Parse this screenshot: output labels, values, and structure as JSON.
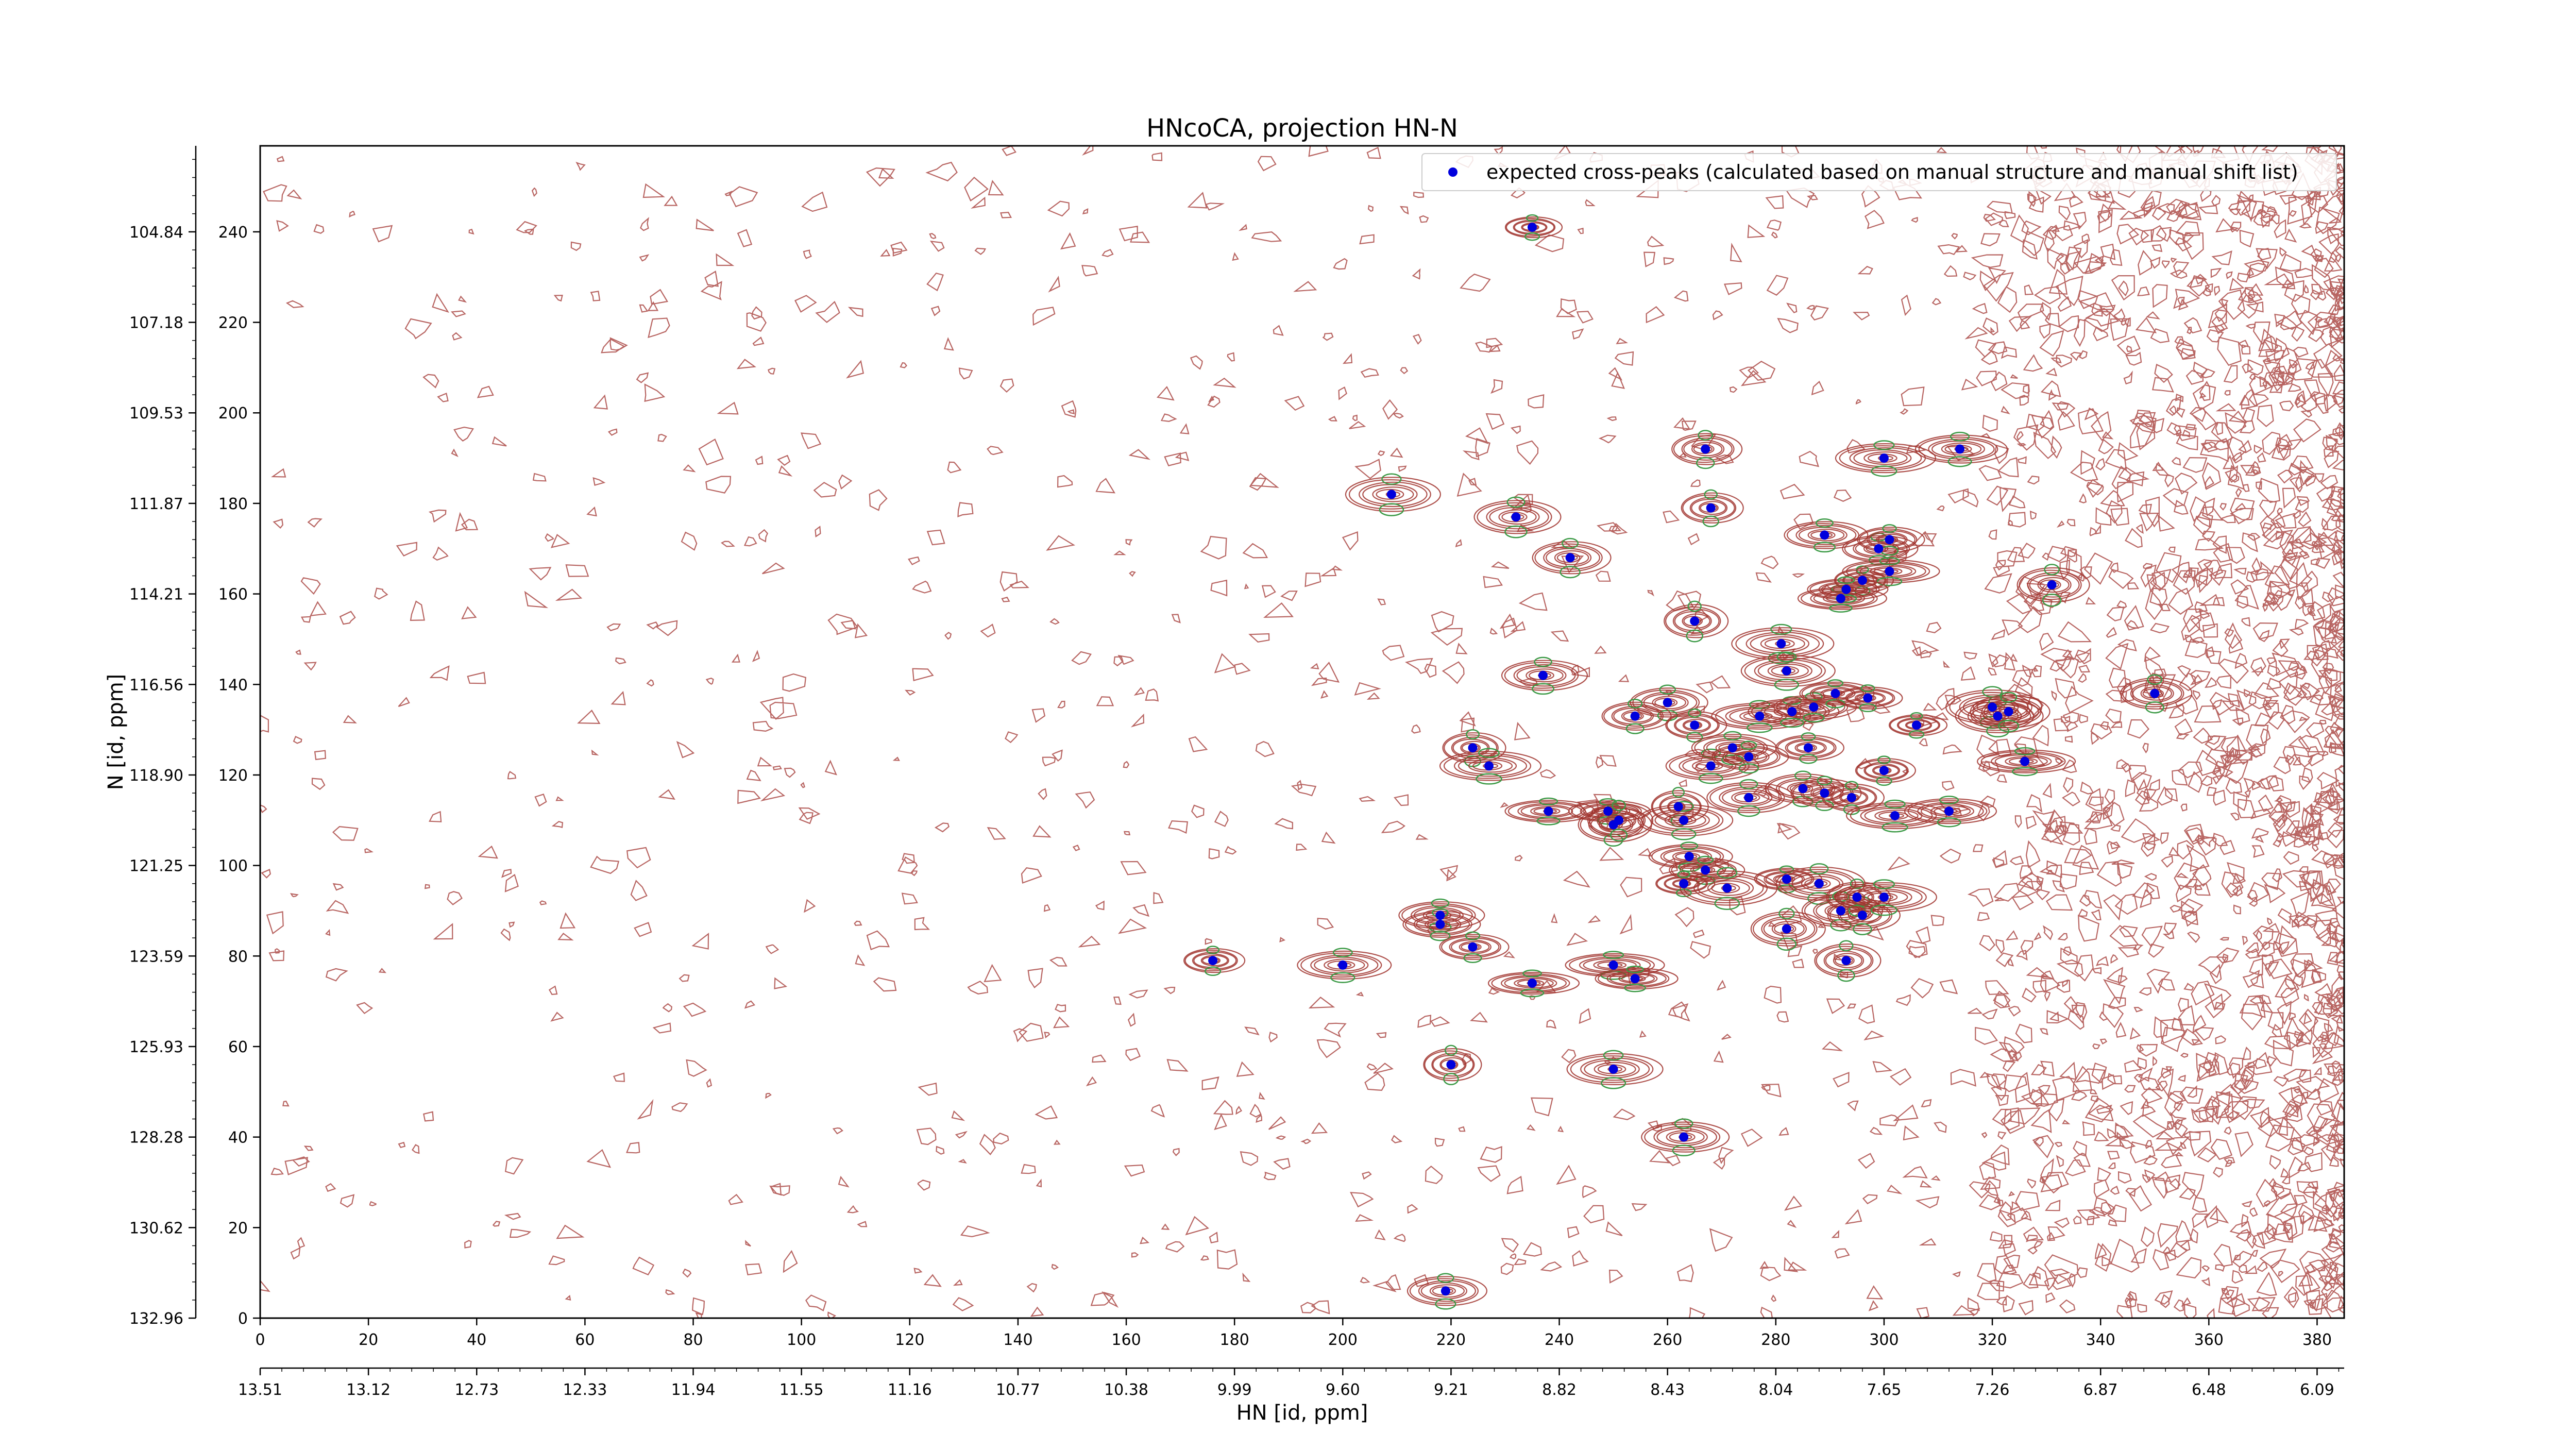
{
  "chart_data": {
    "type": "scatter",
    "title": "HNcoCA, projection HN-N",
    "xlabel": "HN [id, ppm]",
    "ylabel": "N [id, ppm]",
    "xlim": [
      0,
      385
    ],
    "ylim": [
      0,
      259
    ],
    "x_ticks": [
      0,
      20,
      40,
      60,
      80,
      100,
      120,
      140,
      160,
      180,
      200,
      220,
      240,
      260,
      280,
      300,
      320,
      340,
      360,
      380
    ],
    "y_ticks": [
      0,
      20,
      40,
      60,
      80,
      100,
      120,
      140,
      160,
      180,
      200,
      220,
      240
    ],
    "x_ppm_labels": [
      "13.51",
      "13.12",
      "12.73",
      "12.33",
      "11.94",
      "11.55",
      "11.16",
      "10.77",
      "10.38",
      "9.99",
      "9.60",
      "9.21",
      "8.82",
      "8.43",
      "8.04",
      "7.65",
      "7.26",
      "6.87",
      "6.48",
      "6.09"
    ],
    "y_ppm_labels": [
      "132.96",
      "130.62",
      "128.28",
      "125.93",
      "123.59",
      "121.25",
      "118.90",
      "116.56",
      "114.21",
      "111.87",
      "109.53",
      "107.18",
      "104.84"
    ],
    "legend": {
      "location": "upper right",
      "label": "expected cross-peaks (calculated based on manual structure and manual shift list)"
    },
    "colors": {
      "contour_positive": "#a0322d",
      "contour_negative": "#3c9a46",
      "peak_marker": "#0000dd"
    },
    "series": [
      {
        "name": "expected cross-peaks (calculated based on manual structure and manual shift list)",
        "points": [
          [
            235,
            241
          ],
          [
            209,
            182
          ],
          [
            232,
            177
          ],
          [
            242,
            168
          ],
          [
            267,
            192
          ],
          [
            268,
            179
          ],
          [
            300,
            190
          ],
          [
            314,
            192
          ],
          [
            289,
            173
          ],
          [
            299,
            170
          ],
          [
            301,
            172
          ],
          [
            296,
            163
          ],
          [
            301,
            165
          ],
          [
            292,
            159
          ],
          [
            293,
            161
          ],
          [
            331,
            162
          ],
          [
            265,
            154
          ],
          [
            281,
            149
          ],
          [
            282,
            143
          ],
          [
            237,
            142
          ],
          [
            260,
            136
          ],
          [
            254,
            133
          ],
          [
            265,
            131
          ],
          [
            277,
            133
          ],
          [
            283,
            134
          ],
          [
            287,
            135
          ],
          [
            291,
            138
          ],
          [
            297,
            137
          ],
          [
            306,
            131
          ],
          [
            320,
            135
          ],
          [
            321,
            133
          ],
          [
            323,
            134
          ],
          [
            350,
            138
          ],
          [
            224,
            126
          ],
          [
            227,
            122
          ],
          [
            268,
            122
          ],
          [
            272,
            126
          ],
          [
            275,
            124
          ],
          [
            286,
            126
          ],
          [
            300,
            121
          ],
          [
            326,
            123
          ],
          [
            238,
            112
          ],
          [
            249,
            112
          ],
          [
            250,
            109
          ],
          [
            251,
            110
          ],
          [
            262,
            113
          ],
          [
            263,
            110
          ],
          [
            275,
            115
          ],
          [
            285,
            117
          ],
          [
            289,
            116
          ],
          [
            294,
            115
          ],
          [
            302,
            111
          ],
          [
            312,
            112
          ],
          [
            264,
            102
          ],
          [
            267,
            99
          ],
          [
            282,
            97
          ],
          [
            263,
            96
          ],
          [
            271,
            95
          ],
          [
            288,
            96
          ],
          [
            292,
            90
          ],
          [
            296,
            89
          ],
          [
            295,
            93
          ],
          [
            300,
            93
          ],
          [
            200,
            78
          ],
          [
            218,
            89
          ],
          [
            218,
            87
          ],
          [
            224,
            82
          ],
          [
            176,
            79
          ],
          [
            250,
            78
          ],
          [
            235,
            74
          ],
          [
            254,
            75
          ],
          [
            282,
            86
          ],
          [
            293,
            79
          ],
          [
            220,
            56
          ],
          [
            250,
            55
          ],
          [
            263,
            40
          ],
          [
            219,
            6
          ]
        ]
      }
    ]
  }
}
